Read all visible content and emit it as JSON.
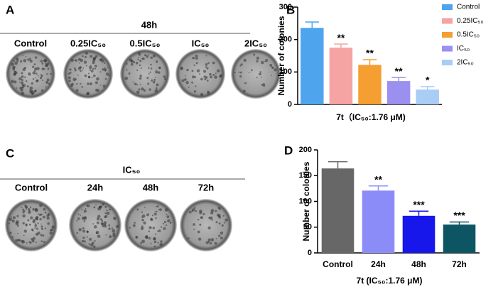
{
  "panels": {
    "a": {
      "letter": "A",
      "header": "48h",
      "labels": [
        "Control",
        "0.25IC₅₀",
        "0.5IC₅₀",
        "IC₅₀",
        "2IC₅₀"
      ]
    },
    "b": {
      "letter": "B"
    },
    "c": {
      "letter": "C",
      "header": "IC₅₀",
      "labels": [
        "Control",
        "24h",
        "48h",
        "72h"
      ]
    },
    "d": {
      "letter": "D"
    }
  },
  "chart_data": [
    {
      "type": "bar",
      "ylabel": "Number of colonies",
      "xlabel": "7t（IC₅₀:1.76 μM)",
      "categories": [
        "Control",
        "0.25IC₅₀",
        "0.5IC₅₀",
        "IC₅₀",
        "2IC₅₀"
      ],
      "values": [
        236,
        175,
        122,
        72,
        46
      ],
      "errors": [
        18,
        11,
        16,
        11,
        9
      ],
      "annotations": [
        null,
        "**",
        "**",
        "**",
        "*"
      ],
      "colors": [
        "#4ea5ee",
        "#f5a3a3",
        "#f59e32",
        "#9b8ff0",
        "#a9cdf4"
      ],
      "ylim": [
        0,
        300
      ],
      "yticks": [
        0,
        100,
        200,
        300
      ],
      "legend": "right",
      "show_categories": false
    },
    {
      "type": "bar",
      "ylabel": "Number of colonies",
      "xlabel": "7t  (IC₅₀:1.76 μM)",
      "categories": [
        "Control",
        "24h",
        "48h",
        "72h"
      ],
      "values": [
        164,
        121,
        72,
        55
      ],
      "errors": [
        13,
        9,
        9,
        5
      ],
      "annotations": [
        null,
        "**",
        "***",
        "***"
      ],
      "colors": [
        "#676767",
        "#8c8cf8",
        "#1717ec",
        "#0d5563"
      ],
      "ylim": [
        0,
        200
      ],
      "yticks": [
        0,
        50,
        100,
        150,
        200
      ],
      "legend": null,
      "show_categories": true
    }
  ]
}
